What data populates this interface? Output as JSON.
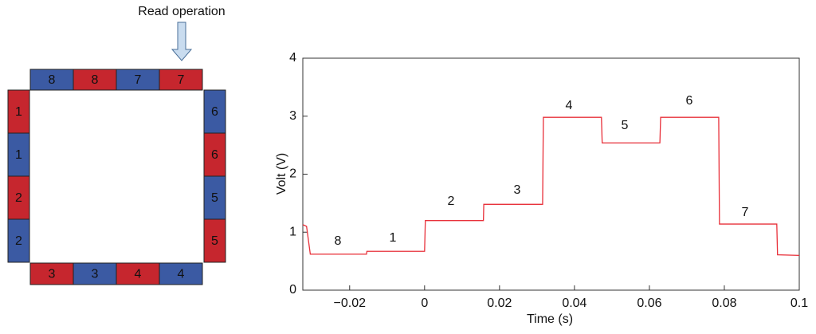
{
  "diagram": {
    "caption": "Read operation",
    "top": [
      "8",
      "8",
      "7",
      "7"
    ],
    "right": [
      "6",
      "6",
      "5",
      "5"
    ],
    "bottom": [
      "3",
      "3",
      "4",
      "4"
    ],
    "left": [
      "1",
      "1",
      "2",
      "2"
    ]
  },
  "chart_data": {
    "type": "line",
    "xlabel": "Time (s)",
    "ylabel": "Volt (V)",
    "x": [
      -0.0325,
      -0.0315,
      -0.0305,
      -0.0155,
      -0.0154,
      0,
      0.0002,
      0.0157,
      0.0158,
      0.0315,
      0.0317,
      0.0472,
      0.0474,
      0.0628,
      0.063,
      0.0785,
      0.0787,
      0.094,
      0.0942,
      0.1
    ],
    "series": [
      {
        "color": "#e8303a",
        "values": [
          1.13,
          1.1,
          0.62,
          0.62,
          0.67,
          0.67,
          1.2,
          1.2,
          1.48,
          1.48,
          2.98,
          2.98,
          2.54,
          2.54,
          2.98,
          2.98,
          1.14,
          1.14,
          0.61,
          0.6
        ]
      }
    ],
    "annotations": [
      "8",
      "1",
      "2",
      "3",
      "4",
      "5",
      "6",
      "7"
    ],
    "xlim": [
      -0.0325,
      0.1
    ],
    "ylim": [
      0,
      4
    ],
    "xticks": [
      {
        "value": -0.02,
        "label": "−0.02"
      },
      0,
      0.02,
      0.04,
      0.06,
      0.08,
      0.1
    ],
    "yticks": [
      0,
      1,
      2,
      3,
      4
    ]
  }
}
